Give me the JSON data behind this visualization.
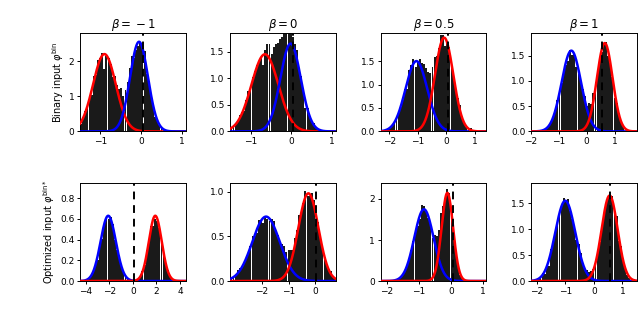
{
  "col_titles": [
    "$\\beta = -1$",
    "$\\beta = 0$",
    "$\\beta = 0.5$",
    "$\\beta = 1$"
  ],
  "row_label_top": "Binary input $\\varphi^{\\rm bin}$",
  "row_label_bot": "Optimized input $\\varphi^{\\rm bin*}$",
  "panels": [
    {
      "row": 0,
      "col": 0,
      "mu1": -0.9,
      "sig1": 0.28,
      "amp1": 2.2,
      "mu2": -0.05,
      "sig2": 0.22,
      "amp2": 2.55,
      "color1": "red",
      "color2": "blue",
      "dashed_x": 0.05,
      "xlim": [
        -1.5,
        1.1
      ],
      "xticks": [
        -1,
        0,
        1
      ],
      "ylim": [
        0,
        2.8
      ],
      "yticks": [
        0,
        1,
        2
      ]
    },
    {
      "row": 0,
      "col": 1,
      "mu1": -0.65,
      "sig1": 0.33,
      "amp1": 1.45,
      "mu2": -0.02,
      "sig2": 0.25,
      "amp2": 1.65,
      "color1": "red",
      "color2": "blue",
      "dashed_x": 0.05,
      "xlim": [
        -1.5,
        1.1
      ],
      "xticks": [
        -1,
        0,
        1
      ],
      "ylim": [
        0,
        1.85
      ],
      "yticks": [
        0,
        0.5,
        1,
        1.5
      ]
    },
    {
      "row": 0,
      "col": 2,
      "mu1": -1.05,
      "sig1": 0.38,
      "amp1": 1.5,
      "mu2": -0.08,
      "sig2": 0.32,
      "amp2": 2.0,
      "color1": "blue",
      "color2": "red",
      "dashed_x": 0.05,
      "xlim": [
        -2.3,
        1.4
      ],
      "xticks": [
        -2,
        -1,
        0,
        1
      ],
      "ylim": [
        0,
        2.1
      ],
      "yticks": [
        0,
        0.5,
        1,
        1.5
      ]
    },
    {
      "row": 0,
      "col": 3,
      "mu1": -0.55,
      "sig1": 0.35,
      "amp1": 1.6,
      "mu2": 0.65,
      "sig2": 0.28,
      "amp2": 1.75,
      "color1": "blue",
      "color2": "red",
      "dashed_x": 0.55,
      "xlim": [
        -2.0,
        1.8
      ],
      "xticks": [
        -2,
        -1,
        0,
        1
      ],
      "ylim": [
        0,
        1.95
      ],
      "yticks": [
        0,
        0.5,
        1,
        1.5
      ]
    },
    {
      "row": 1,
      "col": 0,
      "mu1": -2.1,
      "sig1": 0.65,
      "amp1": 0.63,
      "mu2": 1.9,
      "sig2": 0.55,
      "amp2": 0.63,
      "color1": "blue",
      "color2": "red",
      "dashed_x": 0.05,
      "xlim": [
        -4.5,
        4.5
      ],
      "xticks": [
        -4,
        -2,
        0,
        2,
        4
      ],
      "ylim": [
        0,
        0.95
      ],
      "yticks": [
        0,
        0.2,
        0.4,
        0.6,
        0.8
      ]
    },
    {
      "row": 1,
      "col": 1,
      "mu1": -1.85,
      "sig1": 0.52,
      "amp1": 0.72,
      "mu2": -0.25,
      "sig2": 0.38,
      "amp2": 0.98,
      "color1": "blue",
      "color2": "red",
      "dashed_x": 0.05,
      "xlim": [
        -3.2,
        0.8
      ],
      "xticks": [
        -2,
        -1,
        0
      ],
      "ylim": [
        0,
        1.1
      ],
      "yticks": [
        0,
        0.5,
        1
      ]
    },
    {
      "row": 1,
      "col": 2,
      "mu1": -0.85,
      "sig1": 0.3,
      "amp1": 1.75,
      "mu2": -0.12,
      "sig2": 0.18,
      "amp2": 2.15,
      "color1": "blue",
      "color2": "red",
      "dashed_x": 0.05,
      "xlim": [
        -2.2,
        1.1
      ],
      "xticks": [
        -2,
        -1,
        0,
        1
      ],
      "ylim": [
        0,
        2.4
      ],
      "yticks": [
        0,
        1,
        2
      ]
    },
    {
      "row": 1,
      "col": 3,
      "mu1": -1.0,
      "sig1": 0.35,
      "amp1": 1.55,
      "mu2": 0.55,
      "sig2": 0.28,
      "amp2": 1.65,
      "color1": "blue",
      "color2": "red",
      "dashed_x": 0.55,
      "xlim": [
        -2.2,
        1.5
      ],
      "xticks": [
        -2,
        -1,
        0,
        1
      ],
      "ylim": [
        0,
        1.9
      ],
      "yticks": [
        0,
        0.5,
        1,
        1.5
      ]
    }
  ],
  "bar_color": "#1a1a1a",
  "bar_edge_color": "#555555",
  "bar_alpha": 1.0,
  "n_bins": 50
}
